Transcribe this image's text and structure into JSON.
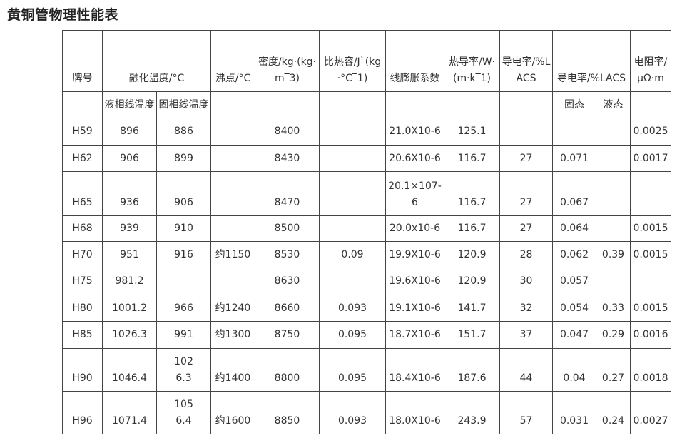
{
  "title": "黄铜管物理性能表",
  "header": {
    "row1": [
      "牌号",
      "融化温度/°C",
      "沸点/°C",
      "密度/kg·(kg·m‾3)",
      "比热容/J`(kg·°C‾1)",
      "线膨胀系数",
      "热导率/W·(m·k‾1)",
      "导电率/%LACS",
      "导电率/%LACS",
      "电阻率/μΩ·m"
    ],
    "row2": [
      "",
      "液相线温度",
      "固相线温度",
      "",
      "",
      "",
      "",
      "",
      "",
      "固态",
      "液态",
      ""
    ]
  },
  "rows": [
    [
      "H59",
      "896",
      "886",
      "",
      "8400",
      "",
      "21.0X10-6",
      "125.1",
      "",
      "",
      "",
      "0.0025"
    ],
    [
      "H62",
      "906",
      "899",
      "",
      "8430",
      "",
      "20.6X10-6",
      "116.7",
      "27",
      "0.071",
      "",
      "0.0017"
    ],
    [
      "H65",
      "936",
      "906",
      "",
      "8470",
      "",
      "20.1×107-6",
      "116.7",
      "27",
      "0.067",
      "",
      ""
    ],
    [
      "H68",
      "939",
      "910",
      "",
      "8500",
      "",
      "20.0x10-6",
      "116.7",
      "27",
      "0.064",
      "",
      "0.0015"
    ],
    [
      "H70",
      "951",
      "916",
      "约1150",
      "8530",
      "0.09",
      "19.9X10-6",
      "120.9",
      "28",
      "0.062",
      "0.39",
      "0.0015"
    ],
    [
      "H75",
      "981.2",
      "",
      "",
      "8630",
      "",
      "19.6X10-6",
      "120.9",
      "30",
      "0.057",
      "",
      ""
    ],
    [
      "H80",
      "1001.2",
      "966",
      "约1240",
      "8660",
      "0.093",
      "19.1X10-6",
      "141.7",
      "32",
      "0.054",
      "0.33",
      "0.0015"
    ],
    [
      "H85",
      "1026.3",
      "991",
      "约1300",
      "8750",
      "0.095",
      "18.7X10-6",
      "151.7",
      "37",
      "0.047",
      "0.29",
      "0.0016"
    ],
    [
      "H90",
      "1046.4",
      "1026.3",
      "约1400",
      "8800",
      "0.095",
      "18.4X10-6",
      "187.6",
      "44",
      "0.04",
      "0.27",
      "0.0018"
    ],
    [
      "H96",
      "1071.4",
      "1056.4",
      "约1600",
      "8850",
      "0.093",
      "18.0X10-6",
      "243.9",
      "57",
      "0.031",
      "0.24",
      "0.0027"
    ]
  ]
}
